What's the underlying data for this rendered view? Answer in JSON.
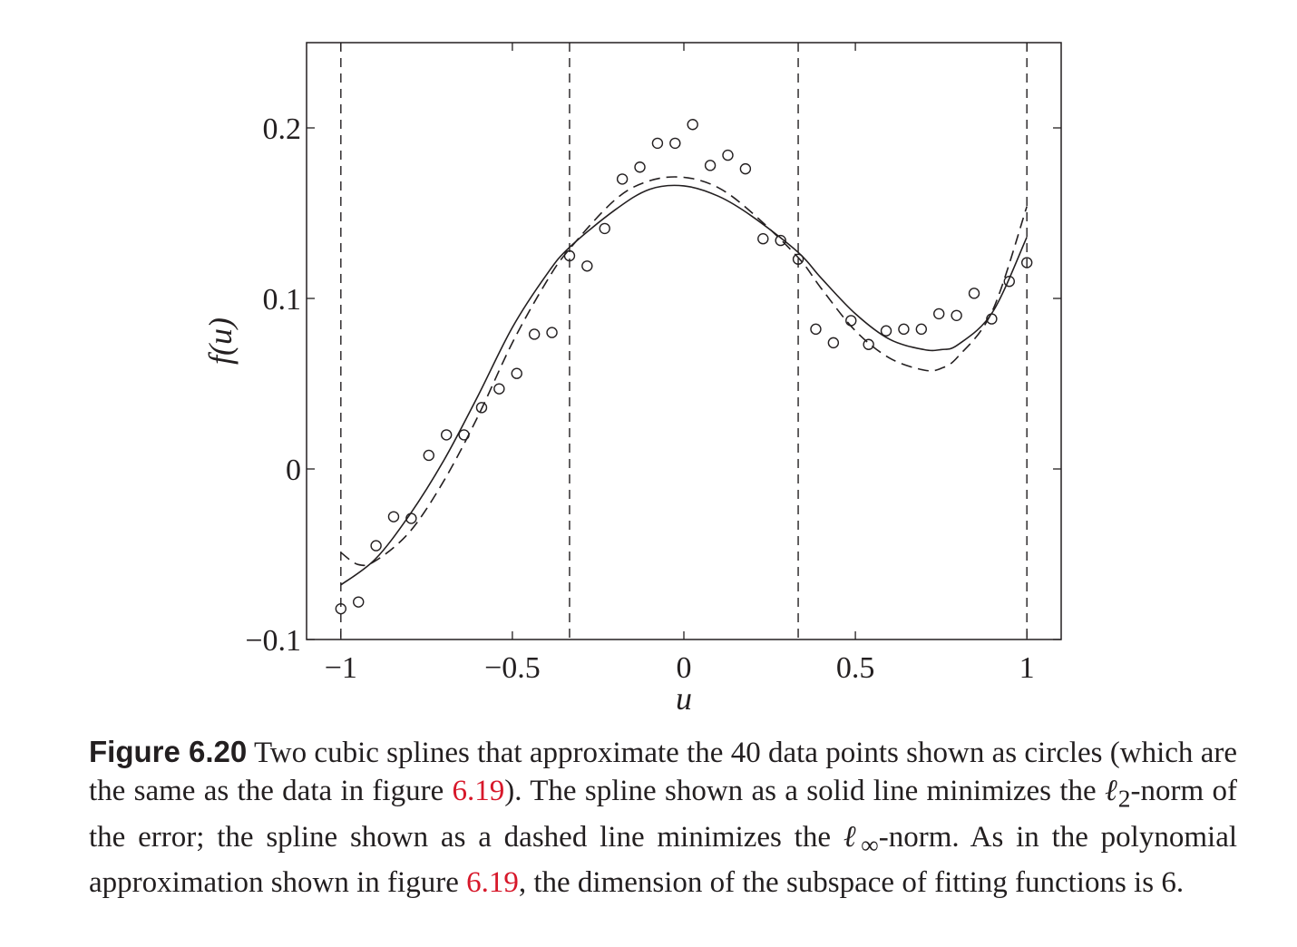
{
  "chart_data": {
    "type": "scatter",
    "title": "",
    "xlabel": "u",
    "ylabel": "f(u)",
    "xlim": [
      -1.1,
      1.1
    ],
    "ylim": [
      -0.1,
      0.25
    ],
    "x_ticks": [
      -1,
      -0.5,
      0,
      0.5,
      1
    ],
    "x_tick_labels": [
      "−1",
      "−0.5",
      "0",
      "0.5",
      "1"
    ],
    "y_ticks": [
      -0.1,
      0,
      0.1,
      0.2
    ],
    "y_tick_labels": [
      "−0.1",
      "0",
      "0.1",
      "0.2"
    ],
    "grid": false,
    "knots": [
      -1,
      -0.3333,
      0.3333,
      1
    ],
    "points": {
      "name": "",
      "marker": "circle",
      "x": [
        -1,
        -0.9487,
        -0.8974,
        -0.8462,
        -0.7949,
        -0.7436,
        -0.6923,
        -0.641,
        -0.5897,
        -0.5385,
        -0.4872,
        -0.4359,
        -0.3846,
        -0.3333,
        -0.2821,
        -0.2308,
        -0.1795,
        -0.1282,
        -0.0769,
        -0.0256,
        0.0256,
        0.0769,
        0.1282,
        0.1795,
        0.2308,
        0.2821,
        0.3333,
        0.3846,
        0.4359,
        0.4872,
        0.5385,
        0.5897,
        0.641,
        0.6923,
        0.7436,
        0.7949,
        0.8462,
        0.8974,
        0.9487,
        1
      ],
      "y": [
        -0.082,
        -0.078,
        -0.045,
        -0.028,
        -0.029,
        0.008,
        0.02,
        0.02,
        0.036,
        0.047,
        0.056,
        0.079,
        0.08,
        0.125,
        0.119,
        0.141,
        0.17,
        0.177,
        0.191,
        0.191,
        0.202,
        0.178,
        0.184,
        0.176,
        0.135,
        0.134,
        0.123,
        0.082,
        0.074,
        0.087,
        0.073,
        0.081,
        0.082,
        0.082,
        0.091,
        0.09,
        0.103,
        0.088,
        0.11,
        0.121
      ]
    },
    "series": [
      {
        "name": "",
        "style": "solid",
        "x": [
          -1,
          -0.9,
          -0.8,
          -0.7,
          -0.6,
          -0.5,
          -0.4,
          -0.3333,
          -0.2,
          -0.1,
          0,
          0.1,
          0.2,
          0.3333,
          0.4,
          0.5,
          0.6,
          0.7,
          0.75,
          0.8,
          0.9,
          1
        ],
        "y": [
          -0.068,
          -0.053,
          -0.027,
          0.005,
          0.043,
          0.083,
          0.114,
          0.13,
          0.152,
          0.164,
          0.166,
          0.16,
          0.148,
          0.127,
          0.112,
          0.091,
          0.076,
          0.07,
          0.07,
          0.073,
          0.092,
          0.136
        ]
      },
      {
        "name": "",
        "style": "dashed",
        "x": [
          -1,
          -0.95,
          -0.9,
          -0.8,
          -0.7,
          -0.6,
          -0.5,
          -0.4,
          -0.3333,
          -0.2,
          -0.1,
          0,
          0.1,
          0.2,
          0.3333,
          0.4,
          0.5,
          0.6,
          0.7,
          0.75,
          0.8,
          0.9,
          1
        ],
        "y": [
          -0.049,
          -0.056,
          -0.054,
          -0.037,
          -0.007,
          0.031,
          0.074,
          0.11,
          0.129,
          0.158,
          0.169,
          0.171,
          0.165,
          0.15,
          0.124,
          0.106,
          0.081,
          0.065,
          0.058,
          0.059,
          0.066,
          0.093,
          0.154
        ]
      }
    ]
  },
  "caption": {
    "figure_label": "Figure 6.20",
    "text_1": " Two cubic splines that approximate the 40 data points shown as circles (which are the same as the data in figure ",
    "ref_1": "6.19",
    "text_2": ").  The spline shown as a solid line minimizes the ",
    "norm_l2_symbol": "ℓ",
    "norm_l2_sub": "2",
    "text_3": "-norm of the error; the spline shown as a dashed line minimizes the ",
    "norm_inf_symbol": "ℓ",
    "norm_inf_sub": "∞",
    "text_4": "-norm.  As in the polynomial approximation shown in figure ",
    "ref_2": "6.19",
    "text_5": ", the dimension of the subspace of fitting functions is 6."
  },
  "colors": {
    "ink": "#231f20",
    "link": "#d7182a",
    "background": "#ffffff"
  }
}
